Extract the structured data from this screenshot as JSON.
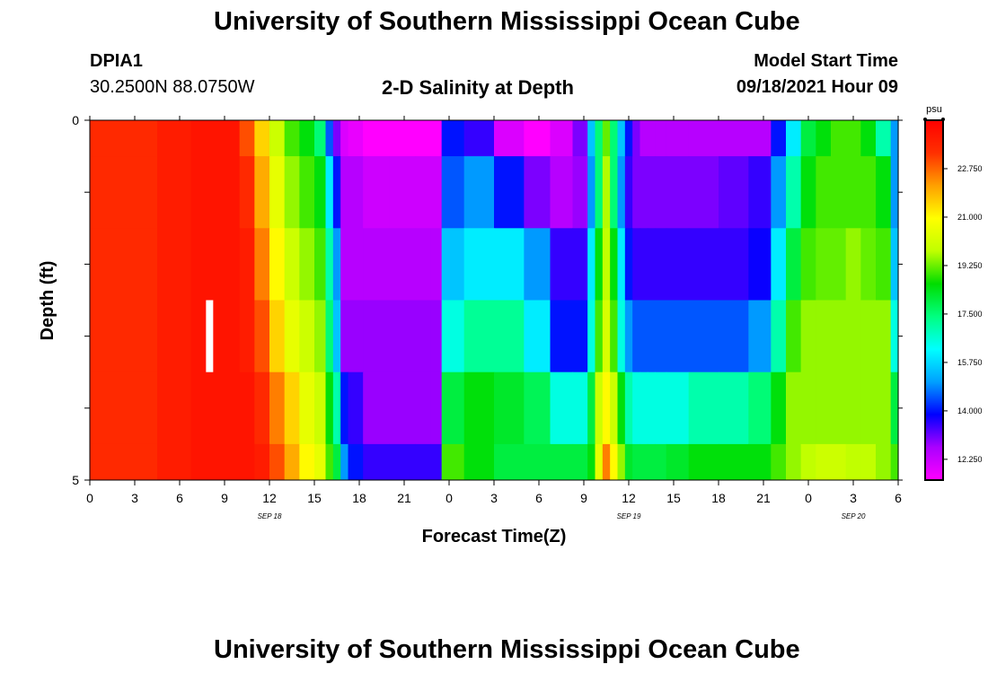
{
  "header": {
    "title": "University of Southern Mississippi Ocean Cube",
    "station_id": "DPIA1",
    "station_coords": "30.2500N  88.0750W",
    "plot_title": "2-D Salinity at Depth",
    "model_start_label": "Model Start Time",
    "model_start_value": "09/18/2021 Hour 09"
  },
  "footer": {
    "title": "University of Southern Mississippi Ocean Cube"
  },
  "colors": {
    "background": "#ffffff",
    "marker": "#ffffff",
    "colorscale": [
      "#ff00ff",
      "#aa00ff",
      "#0000ff",
      "#00a0ff",
      "#00ffff",
      "#00ff80",
      "#00dd00",
      "#c0ff00",
      "#ffff00",
      "#ffa000",
      "#ff3000",
      "#ff0000"
    ]
  },
  "chart_data": {
    "type": "heatmap",
    "title": "2-D Salinity at Depth",
    "xlabel": "Forecast Time(Z)",
    "ylabel": "Depth (ft)",
    "x_range_hours": [
      0,
      54
    ],
    "y_range": [
      0,
      5
    ],
    "y_ticks": [
      0,
      5
    ],
    "x_tick_labels": [
      "0",
      "3",
      "6",
      "9",
      "12",
      "15",
      "18",
      "21",
      "0",
      "3",
      "6",
      "9",
      "12",
      "15",
      "18",
      "21",
      "0",
      "3",
      "6"
    ],
    "date_labels": [
      {
        "hour": 12,
        "label": "SEP 18"
      },
      {
        "hour": 36,
        "label": "SEP 19"
      },
      {
        "hour": 51,
        "label": "SEP 20"
      }
    ],
    "colorbar": {
      "unit": "psu",
      "min": 11.5,
      "max": 24.5,
      "tick_labels": [
        "12.250",
        "14.000",
        "15.750",
        "17.500",
        "19.250",
        "21.000",
        "22.750"
      ]
    },
    "model_start_marker_hour": 8,
    "marker_depth_range": [
      2.5,
      3.5
    ],
    "time_knots_hours": [
      0,
      3,
      6,
      7.5,
      8.5,
      9.5,
      10.5,
      11.5,
      12.5,
      13.5,
      14.5,
      15.5,
      16,
      16.5,
      17,
      17.5,
      19,
      21,
      22.5,
      23,
      24,
      26,
      28,
      30,
      31.5,
      33,
      33.5,
      34,
      34.5,
      35,
      35.5,
      36,
      36.5,
      37,
      37.5,
      38,
      39,
      41,
      43,
      45,
      46,
      47,
      48,
      49,
      50,
      51,
      52,
      53,
      54
    ],
    "salinity_layers": [
      {
        "depth_range": [
          0,
          0.5
        ],
        "values": [
          23.5,
          23.5,
          23.8,
          24,
          24,
          24,
          23,
          21.5,
          20,
          19,
          18.5,
          17.5,
          14.5,
          13,
          12,
          11.8,
          11.5,
          11.5,
          11.5,
          11.5,
          14,
          13.5,
          12,
          11.5,
          12,
          13,
          15.5,
          17.5,
          19.2,
          17.5,
          15.5,
          14,
          13,
          12.5,
          12.5,
          12.5,
          12.5,
          12.5,
          12.5,
          12.5,
          14,
          16,
          18,
          18.5,
          19,
          19,
          18.5,
          17,
          15
        ]
      },
      {
        "depth_range": [
          0.5,
          1.5
        ],
        "values": [
          23.5,
          23.5,
          23.8,
          24,
          24,
          24,
          23.5,
          22,
          20.5,
          19.5,
          19,
          18.5,
          16,
          14,
          12.5,
          12.5,
          12.2,
          12.2,
          12.2,
          12.2,
          14.5,
          15,
          14,
          13,
          12.5,
          12.8,
          15,
          17.5,
          19.7,
          17.5,
          15,
          13.5,
          13,
          13,
          13,
          13,
          13,
          13,
          13.2,
          13.5,
          15,
          17,
          18.5,
          19,
          19,
          19,
          19,
          18.5,
          15
        ]
      },
      {
        "depth_range": [
          1.5,
          2.5
        ],
        "values": [
          23.5,
          23.5,
          23.8,
          24,
          24,
          24,
          23.8,
          22.5,
          21,
          20,
          19.5,
          19,
          17,
          15,
          12.5,
          12.5,
          12.5,
          12.5,
          12.5,
          12.5,
          15.5,
          16,
          16,
          15,
          13.5,
          13.5,
          16,
          18.5,
          19.8,
          18.5,
          16,
          14,
          13.5,
          13.5,
          13.5,
          13.5,
          13.5,
          13.5,
          13.5,
          13.8,
          16,
          18,
          19,
          19.2,
          19.2,
          19.5,
          19.2,
          19,
          15.5
        ]
      },
      {
        "depth_range": [
          2.5,
          3.5
        ],
        "values": [
          23.5,
          23.5,
          23.8,
          24,
          24,
          24,
          23.8,
          23,
          21.5,
          20.5,
          20,
          19.5,
          17.5,
          15.5,
          12.8,
          12.8,
          12.8,
          12.8,
          12.8,
          12.8,
          16.5,
          17.2,
          17.2,
          16,
          14,
          14,
          16.5,
          19,
          20.2,
          19,
          16.5,
          15,
          14.5,
          14.5,
          14.5,
          14.5,
          14.5,
          14.5,
          14.5,
          15,
          17,
          19,
          19.5,
          19.5,
          19.5,
          19.5,
          19.5,
          19.5,
          16.5
        ]
      },
      {
        "depth_range": [
          3.5,
          4.5
        ],
        "values": [
          23.5,
          23.5,
          23.8,
          24,
          24,
          24,
          24,
          23.5,
          22.5,
          21.5,
          20.5,
          20,
          18.5,
          17,
          14,
          13.5,
          12.8,
          12.8,
          12.8,
          12.8,
          18,
          18.5,
          18.2,
          17.8,
          16.5,
          16.5,
          18,
          20,
          21,
          20,
          18.5,
          17,
          16.5,
          16.5,
          16.5,
          16.5,
          16.5,
          17,
          17,
          17.5,
          18.5,
          19.5,
          19.5,
          19.5,
          19.5,
          19.5,
          19.5,
          19.5,
          18
        ]
      },
      {
        "depth_range": [
          4.5,
          5
        ],
        "values": [
          23.5,
          23.5,
          23.8,
          24,
          24,
          24,
          24,
          23.8,
          23,
          22,
          21,
          20.5,
          19,
          18,
          15,
          14,
          13.5,
          13.5,
          13.5,
          13.5,
          19,
          18.5,
          18,
          18,
          18,
          18,
          18.5,
          20.5,
          22.5,
          21,
          19.5,
          18.2,
          18,
          18,
          18,
          18,
          18.2,
          18.5,
          18.5,
          18.5,
          19,
          19.5,
          19.8,
          20,
          20,
          19.8,
          19.8,
          19.5,
          19
        ]
      }
    ]
  }
}
